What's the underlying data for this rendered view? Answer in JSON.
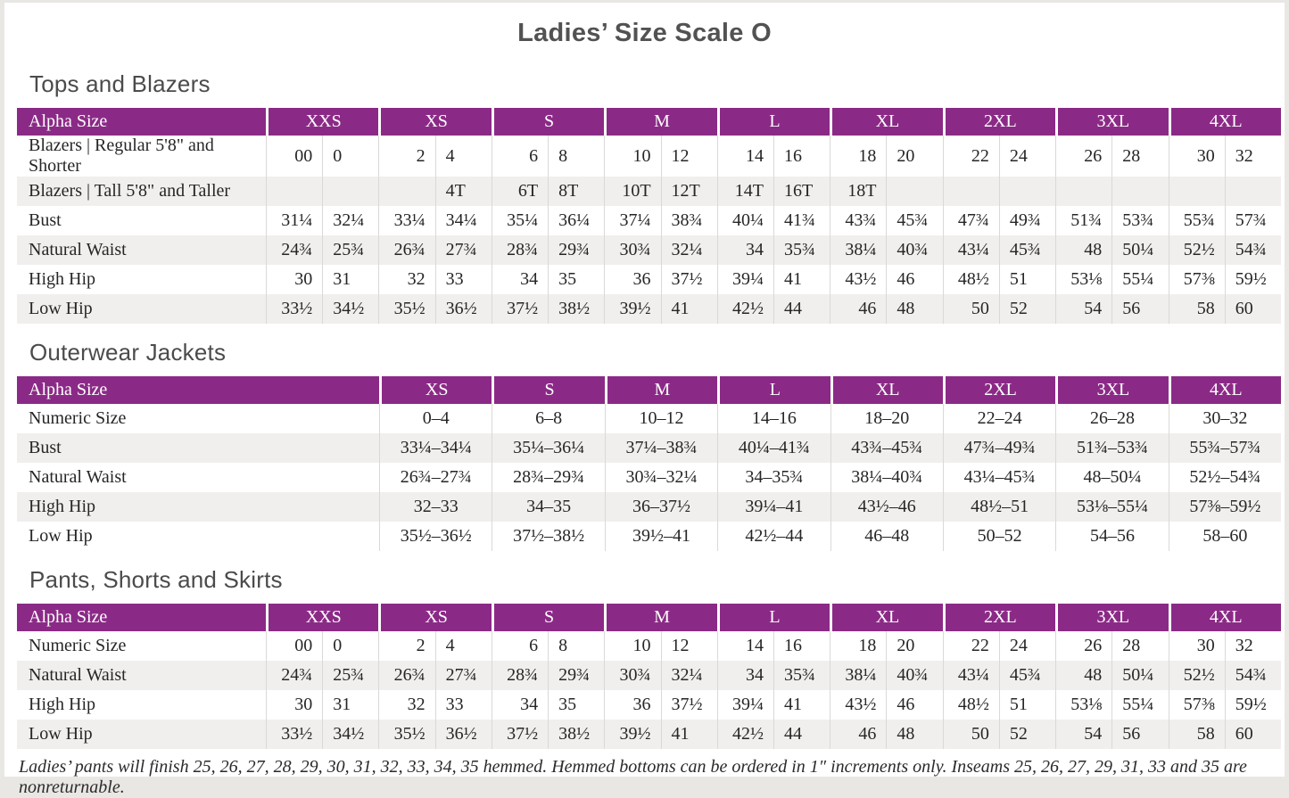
{
  "page_title": "Ladies’ Size Scale O",
  "footnote": "Ladies’ pants will finish 25, 26, 27, 28, 29, 30, 31, 32, 33, 34, 35 hemmed. Hemmed bottoms can be ordered in 1″ increments only. Inseams 25, 26, 27, 29, 31, 33 and 35 are nonreturnable.",
  "colors": {
    "header_bg": "#8B2A86",
    "header_text": "#FFFFFF",
    "row_stripe": "#F1EFED",
    "page_bg": "#FFFFFF",
    "frame_bg": "#E9E7E4",
    "divider": "#DBD9D7",
    "title_text": "#525252",
    "body_text": "#262626"
  },
  "tables": [
    {
      "section_title": "Tops and Blazers",
      "alpha_header": "Alpha Size",
      "sizes": [
        "XXS",
        "XS",
        "S",
        "M",
        "L",
        "XL",
        "2XL",
        "3XL",
        "4XL"
      ],
      "paired_columns": true,
      "rows": [
        {
          "label": "Blazers | Regular 5'8\" and Shorter",
          "values": [
            "00",
            "0",
            "2",
            "4",
            "6",
            "8",
            "10",
            "12",
            "14",
            "16",
            "18",
            "20",
            "22",
            "24",
            "26",
            "28",
            "30",
            "32"
          ]
        },
        {
          "label": "Blazers | Tall 5'8\" and Taller",
          "values": [
            "",
            "",
            "",
            "4T",
            "6T",
            "8T",
            "10T",
            "12T",
            "14T",
            "16T",
            "18T",
            "",
            "",
            "",
            "",
            "",
            "",
            ""
          ]
        },
        {
          "label": "Bust",
          "values": [
            "31¼",
            "32¼",
            "33¼",
            "34¼",
            "35¼",
            "36¼",
            "37¼",
            "38¾",
            "40¼",
            "41¾",
            "43¾",
            "45¾",
            "47¾",
            "49¾",
            "51¾",
            "53¾",
            "55¾",
            "57¾"
          ]
        },
        {
          "label": "Natural Waist",
          "values": [
            "24¾",
            "25¾",
            "26¾",
            "27¾",
            "28¾",
            "29¾",
            "30¾",
            "32¼",
            "34",
            "35¾",
            "38¼",
            "40¾",
            "43¼",
            "45¾",
            "48",
            "50¼",
            "52½",
            "54¾"
          ]
        },
        {
          "label": "High Hip",
          "values": [
            "30",
            "31",
            "32",
            "33",
            "34",
            "35",
            "36",
            "37½",
            "39¼",
            "41",
            "43½",
            "46",
            "48½",
            "51",
            "53⅛",
            "55¼",
            "57⅜",
            "59½"
          ]
        },
        {
          "label": "Low Hip",
          "values": [
            "33½",
            "34½",
            "35½",
            "36½",
            "37½",
            "38½",
            "39½",
            "41",
            "42½",
            "44",
            "46",
            "48",
            "50",
            "52",
            "54",
            "56",
            "58",
            "60"
          ]
        }
      ]
    },
    {
      "section_title": "Outerwear Jackets",
      "alpha_header": "Alpha Size",
      "sizes": [
        "XS",
        "S",
        "M",
        "L",
        "XL",
        "2XL",
        "3XL",
        "4XL"
      ],
      "paired_columns": false,
      "rows": [
        {
          "label": "Numeric Size",
          "values": [
            "0–4",
            "6–8",
            "10–12",
            "14–16",
            "18–20",
            "22–24",
            "26–28",
            "30–32"
          ]
        },
        {
          "label": "Bust",
          "values": [
            "33¼–34¼",
            "35¼–36¼",
            "37¼–38¾",
            "40¼–41¾",
            "43¾–45¾",
            "47¾–49¾",
            "51¾–53¾",
            "55¾–57¾"
          ]
        },
        {
          "label": "Natural Waist",
          "values": [
            "26¾–27¾",
            "28¾–29¾",
            "30¾–32¼",
            "34–35¾",
            "38¼–40¾",
            "43¼–45¾",
            "48–50¼",
            "52½–54¾"
          ]
        },
        {
          "label": "High Hip",
          "values": [
            "32–33",
            "34–35",
            "36–37½",
            "39¼–41",
            "43½–46",
            "48½–51",
            "53⅛–55¼",
            "57⅜–59½"
          ]
        },
        {
          "label": "Low Hip",
          "values": [
            "35½–36½",
            "37½–38½",
            "39½–41",
            "42½–44",
            "46–48",
            "50–52",
            "54–56",
            "58–60"
          ]
        }
      ]
    },
    {
      "section_title": "Pants, Shorts and Skirts",
      "alpha_header": "Alpha Size",
      "sizes": [
        "XXS",
        "XS",
        "S",
        "M",
        "L",
        "XL",
        "2XL",
        "3XL",
        "4XL"
      ],
      "paired_columns": true,
      "rows": [
        {
          "label": "Numeric Size",
          "values": [
            "00",
            "0",
            "2",
            "4",
            "6",
            "8",
            "10",
            "12",
            "14",
            "16",
            "18",
            "20",
            "22",
            "24",
            "26",
            "28",
            "30",
            "32"
          ]
        },
        {
          "label": "Natural Waist",
          "values": [
            "24¾",
            "25¾",
            "26¾",
            "27¾",
            "28¾",
            "29¾",
            "30¾",
            "32¼",
            "34",
            "35¾",
            "38¼",
            "40¾",
            "43¼",
            "45¾",
            "48",
            "50¼",
            "52½",
            "54¾"
          ]
        },
        {
          "label": "High Hip",
          "values": [
            "30",
            "31",
            "32",
            "33",
            "34",
            "35",
            "36",
            "37½",
            "39¼",
            "41",
            "43½",
            "46",
            "48½",
            "51",
            "53⅛",
            "55¼",
            "57⅜",
            "59½"
          ]
        },
        {
          "label": "Low Hip",
          "values": [
            "33½",
            "34½",
            "35½",
            "36½",
            "37½",
            "38½",
            "39½",
            "41",
            "42½",
            "44",
            "46",
            "48",
            "50",
            "52",
            "54",
            "56",
            "58",
            "60"
          ]
        }
      ]
    }
  ]
}
